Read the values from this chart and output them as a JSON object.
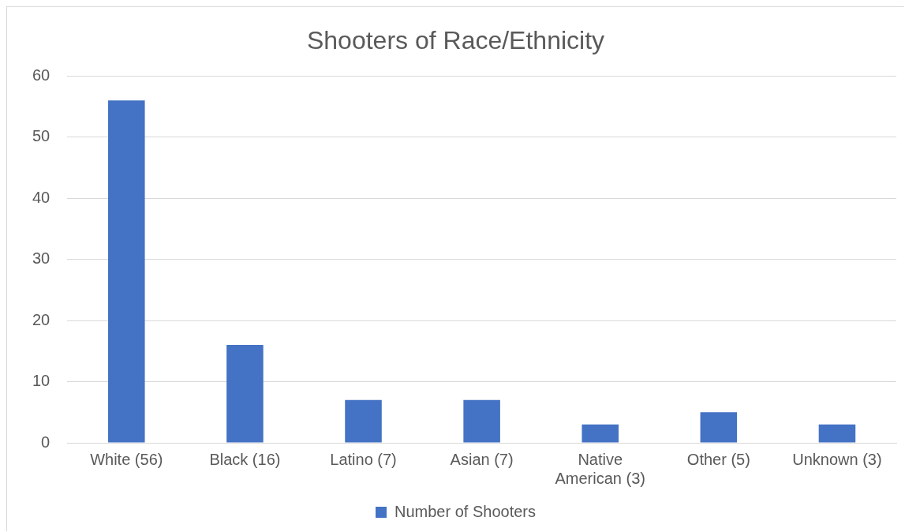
{
  "chart_data": {
    "type": "bar",
    "title": "Shooters of Race/Ethnicity",
    "categories": [
      "White (56)",
      "Black (16)",
      "Latino (7)",
      "Asian (7)",
      "Native American (3)",
      "Other (5)",
      "Unknown (3)"
    ],
    "series": [
      {
        "name": "Number of Shooters",
        "color": "#4472c4",
        "values": [
          56,
          16,
          7,
          7,
          3,
          5,
          3
        ]
      }
    ],
    "ylim": [
      0,
      60
    ],
    "yticks": [
      0,
      10,
      20,
      30,
      40,
      50,
      60
    ],
    "grid": "y",
    "legend": "bottom"
  }
}
